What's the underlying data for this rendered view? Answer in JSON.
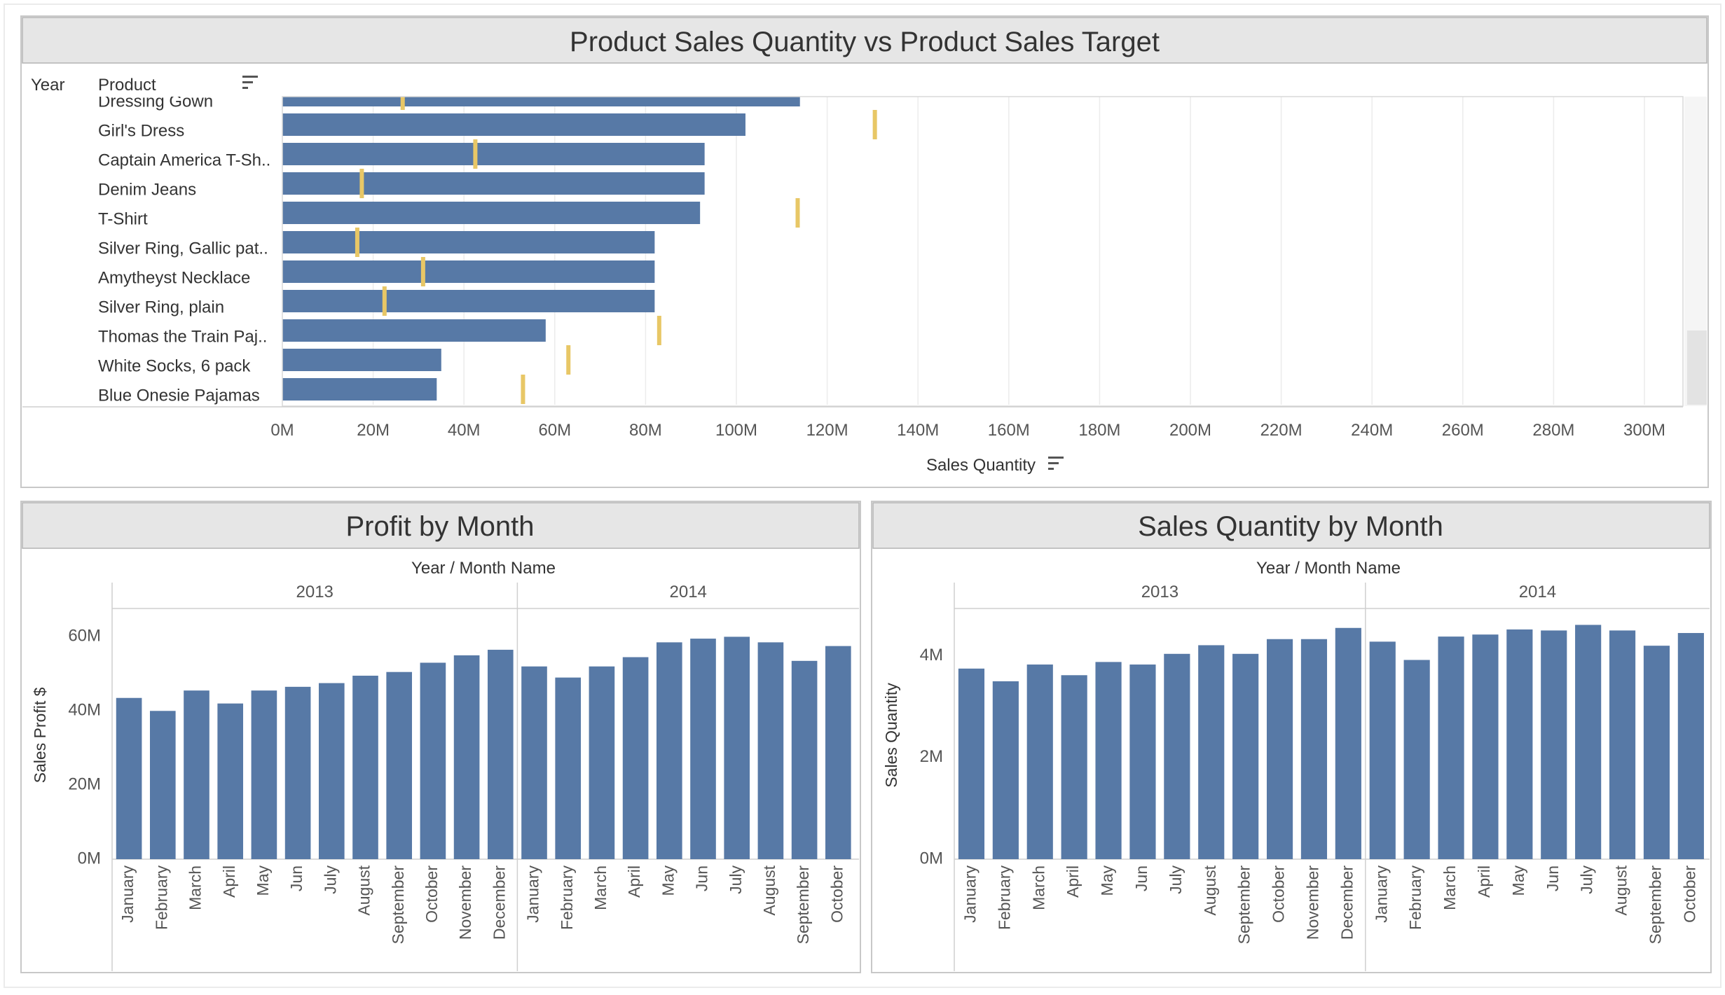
{
  "colors": {
    "bar": "#5779a6",
    "target": "#e8c766",
    "title_bg": "#e6e6e6",
    "panel_border": "#c8c8c8",
    "grid": "#ececec",
    "text": "#333333",
    "axis_text": "#555555"
  },
  "icons": {
    "sort": "sort-icon"
  },
  "chart_data": [
    {
      "type": "bar",
      "orientation": "horizontal",
      "title": "Product Sales Quantity vs Product Sales Target",
      "row_headers": [
        "Year",
        "Product"
      ],
      "xlabel": "Sales Quantity",
      "x_ticks": [
        "0M",
        "20M",
        "40M",
        "60M",
        "80M",
        "100M",
        "120M",
        "140M",
        "160M",
        "180M",
        "200M",
        "220M",
        "240M",
        "260M",
        "280M",
        "300M"
      ],
      "xlim": [
        0,
        300
      ],
      "unit": "M",
      "grid": true,
      "scrolled": true,
      "categories": [
        "Dressing Gown",
        "Girl's Dress",
        "Captain America T-Sh..",
        "Denim Jeans",
        "T-Shirt",
        "Silver Ring, Gallic pat..",
        "Amytheyst Necklace",
        "Silver Ring, plain",
        "Thomas the Train Paj..",
        "White Socks, 6 pack",
        "Blue Onesie Pajamas"
      ],
      "series": [
        {
          "name": "Sales Quantity",
          "values": [
            114,
            102,
            93,
            93,
            92,
            82,
            82,
            82,
            58,
            35,
            34
          ]
        },
        {
          "name": "Sales Target",
          "values": [
            26.5,
            130.5,
            42.5,
            17.5,
            113.5,
            16.5,
            31,
            22.5,
            83,
            63,
            53
          ]
        }
      ]
    },
    {
      "type": "bar",
      "title": "Profit by Month",
      "header": "Year / Month Name",
      "ylabel": "Sales Profit $",
      "y_ticks": [
        "60M",
        "40M",
        "20M",
        "0M"
      ],
      "ylim": [
        0,
        66.5
      ],
      "unit": "M",
      "groups": [
        {
          "year": "2013",
          "months": [
            "January",
            "February",
            "March",
            "April",
            "May",
            "Jun",
            "July",
            "August",
            "September",
            "October",
            "November",
            "December"
          ]
        },
        {
          "year": "2014",
          "months": [
            "January",
            "February",
            "March",
            "April",
            "May",
            "Jun",
            "July",
            "August",
            "September",
            "October"
          ]
        }
      ],
      "values": [
        43.5,
        40,
        45.5,
        42,
        45.5,
        46.5,
        47.5,
        49.5,
        50.5,
        53,
        55,
        56.5,
        52,
        49,
        52,
        54.5,
        58.5,
        59.5,
        60,
        58.5,
        53.5,
        57.5
      ]
    },
    {
      "type": "bar",
      "title": "Sales Quantity by Month",
      "header": "Year / Month Name",
      "ylabel": "Sales Quantity",
      "y_ticks": [
        "4M",
        "2M",
        "0M"
      ],
      "ylim": [
        0,
        4.85
      ],
      "unit": "M",
      "groups": [
        {
          "year": "2013",
          "months": [
            "January",
            "February",
            "March",
            "April",
            "May",
            "Jun",
            "July",
            "August",
            "September",
            "October",
            "November",
            "December"
          ]
        },
        {
          "year": "2014",
          "months": [
            "January",
            "February",
            "March",
            "April",
            "May",
            "Jun",
            "July",
            "August",
            "September",
            "October"
          ]
        }
      ],
      "values": [
        3.75,
        3.5,
        3.83,
        3.62,
        3.88,
        3.83,
        4.04,
        4.21,
        4.04,
        4.33,
        4.33,
        4.55,
        4.28,
        3.92,
        4.38,
        4.42,
        4.52,
        4.5,
        4.61,
        4.5,
        4.2,
        4.45
      ]
    }
  ]
}
